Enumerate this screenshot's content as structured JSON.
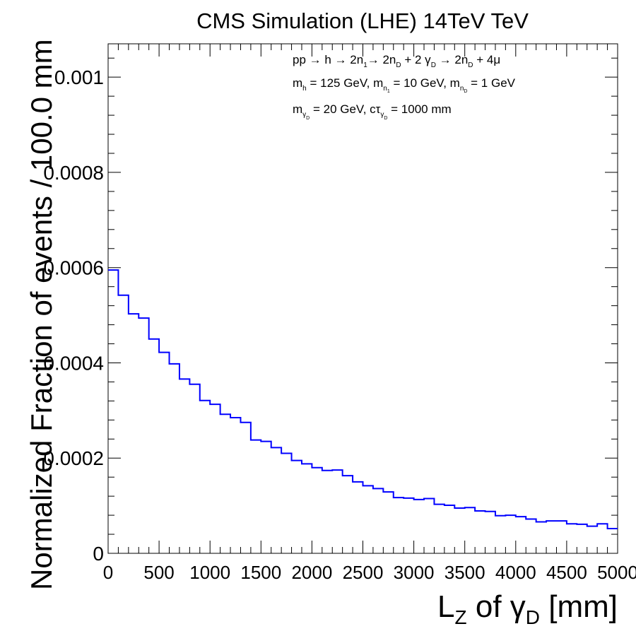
{
  "chart_data": {
    "type": "histogram-step",
    "title": "CMS Simulation (LHE) 14TeV TeV",
    "xlabel": {
      "main": "L",
      "sub1": "Z",
      "mid": " of ",
      "gamma": "γ",
      "sub2": "D",
      "unit": " [mm]"
    },
    "ylabel": "Normalized Fraction of events / 100.0 mm",
    "xlim": [
      0,
      5000
    ],
    "ylim": [
      0,
      0.00107
    ],
    "x_ticks": [
      0,
      500,
      1000,
      1500,
      2000,
      2500,
      3000,
      3500,
      4000,
      4500,
      5000
    ],
    "x_tick_labels": [
      "0",
      "500",
      "1000",
      "1500",
      "2000",
      "2500",
      "3000",
      "3500",
      "4000",
      "4500",
      "5000"
    ],
    "y_ticks": [
      0,
      0.0002,
      0.0004,
      0.0006,
      0.0008,
      0.001
    ],
    "y_tick_labels": [
      "0",
      "0.0002",
      "0.0004",
      "0.0006",
      "0.0008",
      "0.001"
    ],
    "bin_width": 100,
    "series": [
      {
        "color": "#0000ff",
        "bin_edges_start": 0,
        "values": [
          0.000595,
          0.000542,
          0.000503,
          0.000494,
          0.00045,
          0.000422,
          0.000398,
          0.000366,
          0.000355,
          0.000321,
          0.000313,
          0.000292,
          0.000285,
          0.000275,
          0.000238,
          0.000235,
          0.000222,
          0.00021,
          0.000195,
          0.000188,
          0.00018,
          0.000174,
          0.000175,
          0.000163,
          0.00015,
          0.000142,
          0.000136,
          0.000129,
          0.000117,
          0.000116,
          0.000113,
          0.000115,
          0.000103,
          0.000101,
          9.5e-05,
          9.6e-05,
          8.9e-05,
          8.8e-05,
          7.9e-05,
          8e-05,
          7.7e-05,
          7.2e-05,
          6.6e-05,
          6.8e-05,
          6.8e-05,
          6.2e-05,
          6.1e-05,
          5.7e-05,
          6.2e-05,
          5.2e-05
        ]
      }
    ],
    "annotations": {
      "line1": {
        "a": "pp ",
        "arrow1": "→",
        "b": " h ",
        "arrow2": "→",
        "c": " 2n",
        "c_sub": "1",
        "arrow3": "→",
        "d": " 2n",
        "d_sub": "D",
        "e": " + 2 γ",
        "e_sub": "D",
        "arrow4": " → ",
        "f": "2n",
        "f_sub": "D",
        "g": " + 4μ"
      },
      "line2": {
        "a": "m",
        "a_sub": "h",
        "b": " = 125 GeV, m",
        "b_sub": "n",
        "b_subsub": "1",
        "c": " = 10 GeV, m",
        "c_sub": "n",
        "c_subsub": "D",
        "d": " = 1 GeV"
      },
      "line3": {
        "a": "m",
        "a_sub": "γ",
        "a_subsub": "D",
        "b": " = 20 GeV, cτ",
        "b_sub": "γ",
        "b_subsub": "D",
        "c": " = 1000 mm"
      }
    }
  }
}
